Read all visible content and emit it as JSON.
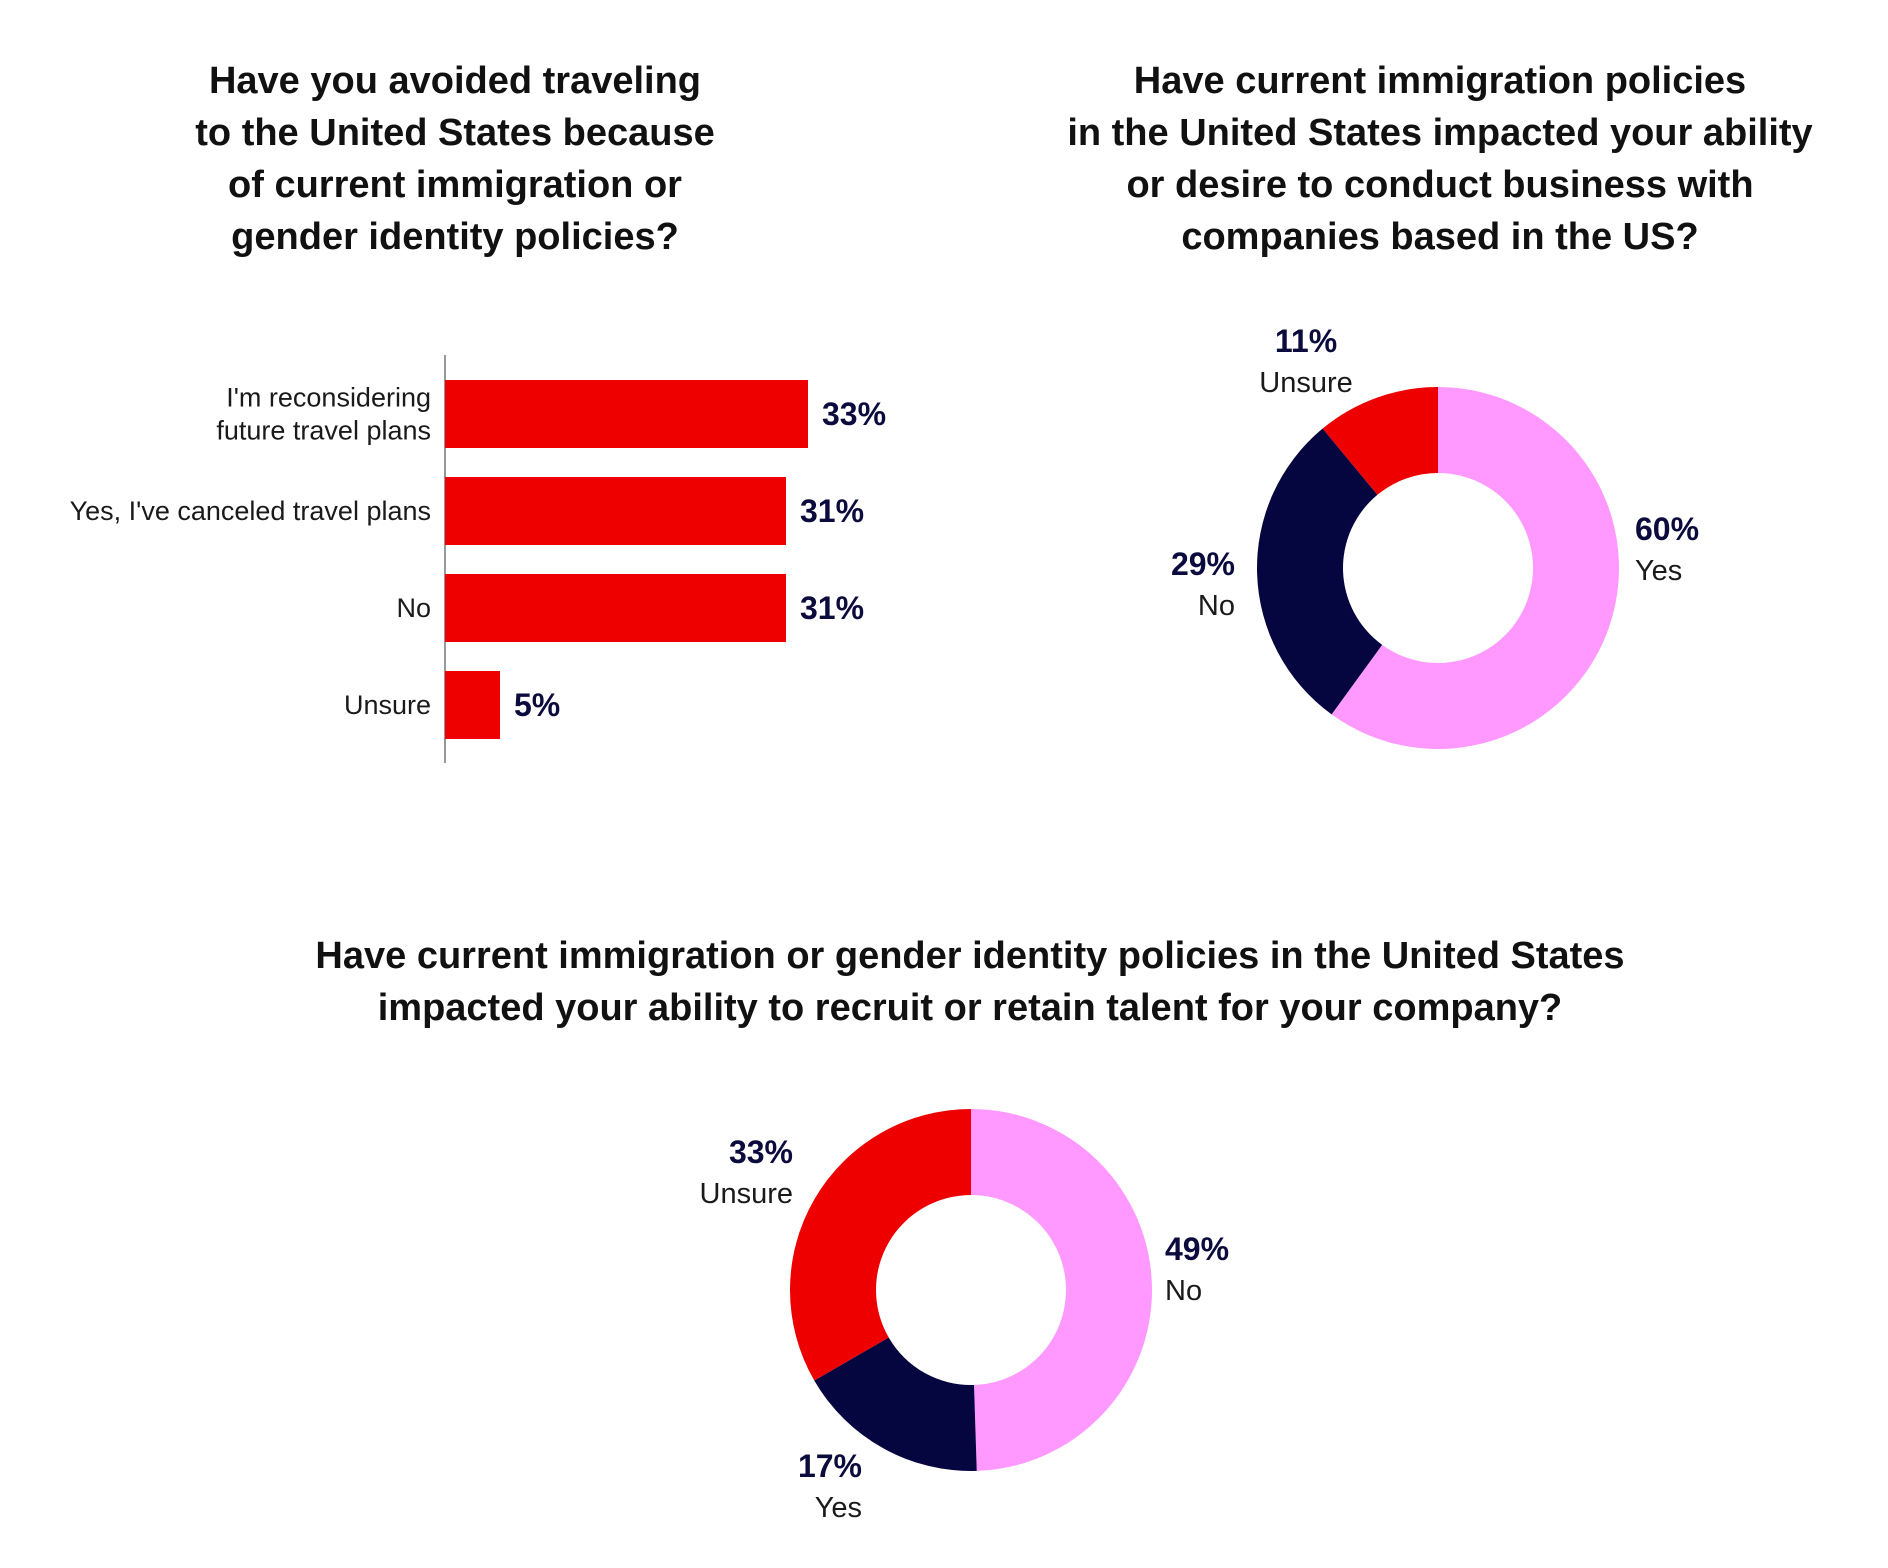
{
  "chart_data": [
    {
      "type": "bar",
      "orientation": "horizontal",
      "title": "Have you avoided traveling\nto the United States because\nof current immigration or\ngender identity policies?",
      "categories": [
        [
          "I'm reconsidering",
          "future travel plans"
        ],
        [
          "Yes, I've canceled travel plans"
        ],
        [
          "No"
        ],
        [
          "Unsure"
        ]
      ],
      "values": [
        33,
        31,
        31,
        5
      ],
      "value_labels": [
        "33%",
        "31%",
        "31%",
        "5%"
      ],
      "unit": "%",
      "xlim": [
        0,
        100
      ],
      "color": "#ee0000"
    },
    {
      "type": "pie",
      "donut": true,
      "title": "Have current immigration policies\nin the United States impacted your ability\nor desire to conduct business with\ncompanies based in the US?",
      "slices": [
        {
          "label": "Yes",
          "value": 60,
          "value_label": "60%",
          "color": "#ff99ff"
        },
        {
          "label": "No",
          "value": 29,
          "value_label": "29%",
          "color": "#050540"
        },
        {
          "label": "Unsure",
          "value": 11,
          "value_label": "11%",
          "color": "#ee0000"
        }
      ]
    },
    {
      "type": "pie",
      "donut": true,
      "title": "Have current immigration or gender identity policies in the United States\nimpacted your ability to recruit or retain talent for your company?",
      "slices": [
        {
          "label": "No",
          "value": 49,
          "value_label": "49%",
          "color": "#ff99ff"
        },
        {
          "label": "Yes",
          "value": 17,
          "value_label": "17%",
          "color": "#050540"
        },
        {
          "label": "Unsure",
          "value": 33,
          "value_label": "33%",
          "color": "#ee0000"
        }
      ]
    }
  ]
}
